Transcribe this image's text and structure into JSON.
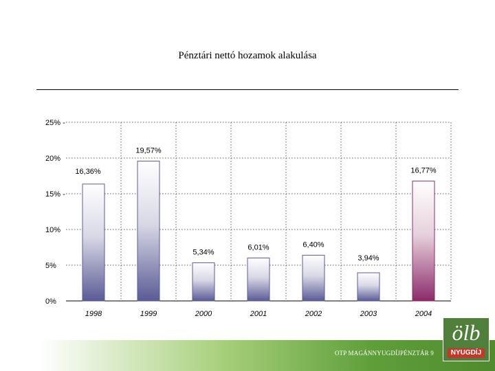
{
  "page": {
    "title": "Pénztári nettó hozamok alakulása",
    "footer_text": "OTP MAGÁNNYUGDÍJPÉNZTÁR 9",
    "logo_mark": "ölb",
    "logo_word": "NYUGDÍJ"
  },
  "colors": {
    "bar_base": "#5a5a96",
    "bar_highlight": "#8c2a6a",
    "grid": "#555555"
  },
  "chart_data": {
    "type": "bar",
    "title": "",
    "xlabel": "",
    "ylabel": "",
    "ylim": [
      0,
      25
    ],
    "grid": true,
    "categories": [
      "1998",
      "1999",
      "2000",
      "2001",
      "2002",
      "2003",
      "2004"
    ],
    "values": [
      16.36,
      19.57,
      5.34,
      6.01,
      6.4,
      3.94,
      16.77
    ],
    "data_labels": [
      "16,36%",
      "19,57%",
      "5,34%",
      "6,01%",
      "6,40%",
      "3,94%",
      "16,77%"
    ],
    "highlight_index": 6,
    "y_ticks": [
      {
        "value": 0,
        "label": "0%"
      },
      {
        "value": 5,
        "label": "5%"
      },
      {
        "value": 10,
        "label": "10%"
      },
      {
        "value": 15,
        "label": "15% -"
      },
      {
        "value": 20,
        "label": "20%"
      },
      {
        "value": 25,
        "label": "25% -"
      }
    ]
  }
}
